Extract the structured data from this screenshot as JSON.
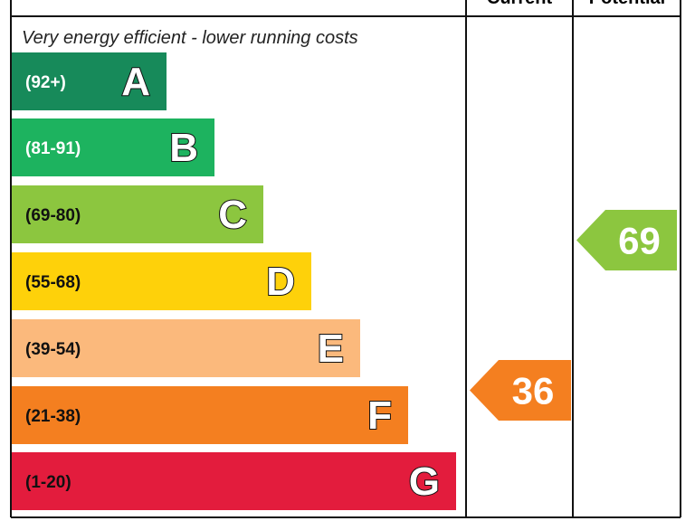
{
  "header": {
    "current": "Current",
    "potential": "Potential"
  },
  "top_note": "Very energy efficient - lower running costs",
  "bands": [
    {
      "range": "(92+)",
      "letter": "A",
      "color": "#178a5a",
      "text_color": "#ffffff"
    },
    {
      "range": "(81-91)",
      "letter": "B",
      "color": "#1db35f",
      "text_color": "#ffffff"
    },
    {
      "range": "(69-80)",
      "letter": "C",
      "color": "#8cc63f",
      "text_color": "#111111"
    },
    {
      "range": "(55-68)",
      "letter": "D",
      "color": "#fed10a",
      "text_color": "#111111"
    },
    {
      "range": "(39-54)",
      "letter": "E",
      "color": "#fbb97c",
      "text_color": "#111111"
    },
    {
      "range": "(21-38)",
      "letter": "F",
      "color": "#f47f20",
      "text_color": "#111111"
    },
    {
      "range": "(1-20)",
      "letter": "G",
      "color": "#e31c3d",
      "text_color": "#111111"
    }
  ],
  "current": {
    "value": 36,
    "color": "#f47f20"
  },
  "potential": {
    "value": 69,
    "color": "#8cc63f"
  }
}
